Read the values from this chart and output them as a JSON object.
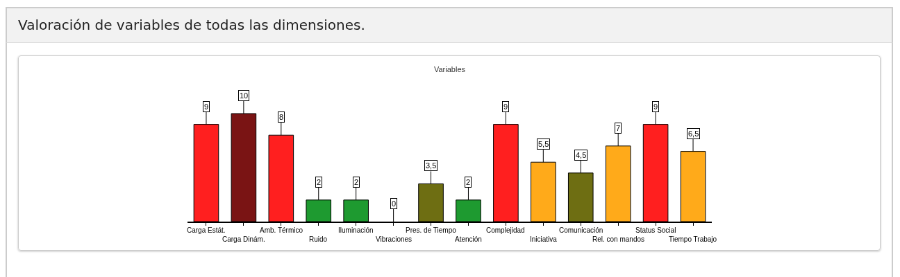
{
  "chart_data": {
    "type": "bar",
    "title": "Valoración de variables de todas las dimensiones.",
    "subtitle": "Variables",
    "categories": [
      "Carga Estát.",
      "Carga Dinám.",
      "Amb. Térmico",
      "Ruido",
      "Iluminación",
      "Vibraciones",
      "Pres. de Tiempo",
      "Atención",
      "Complejidad",
      "Iniciativa",
      "Comunicación",
      "Rel. con mandos",
      "Status Social",
      "Tiempo Trabajo"
    ],
    "values": [
      9,
      10,
      8,
      2,
      2,
      0,
      3.5,
      2,
      9,
      5.5,
      4.5,
      7,
      9,
      6.5
    ],
    "value_labels": [
      "9",
      "10",
      "8",
      "2",
      "2",
      "0",
      "3,5",
      "2",
      "9",
      "5,5",
      "4,5",
      "7",
      "9",
      "6,5"
    ],
    "colors": [
      "#ff1f1f",
      "#7a1414",
      "#ff1f1f",
      "#1e9a30",
      "#1e9a30",
      "#1e9a30",
      "#6e6e12",
      "#1e9a30",
      "#ff1f1f",
      "#ffaa1a",
      "#6e6e12",
      "#ffaa1a",
      "#ff1f1f",
      "#ffaa1a"
    ],
    "grid": false
  }
}
